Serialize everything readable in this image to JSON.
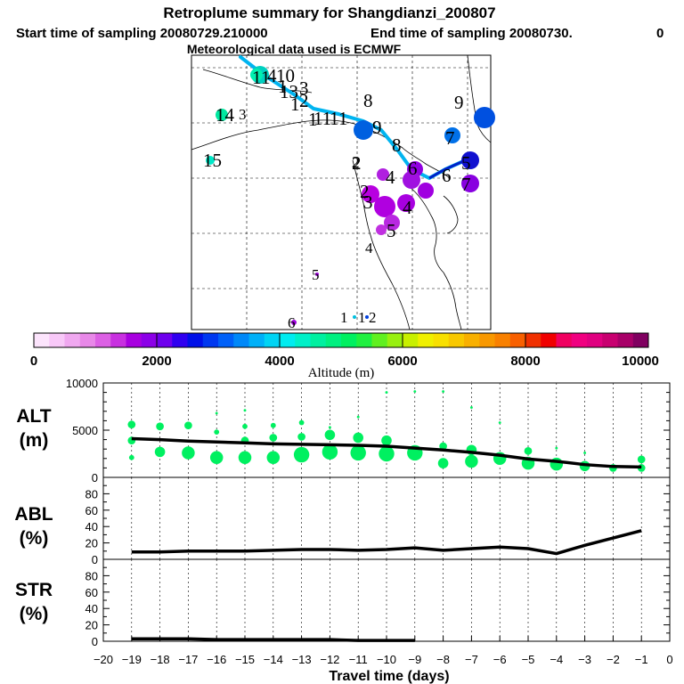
{
  "header": {
    "title": "Retroplume summary for Shangdianzi_200807",
    "start_label": "Start time of sampling 20080729.210000",
    "end_label": "End time of sampling 20080730.",
    "end_suffix": "0",
    "met_label": "Meteorological data used is ECMWF"
  },
  "colorbar": {
    "label": "Altitude (m)",
    "ticks": [
      "0",
      "2000",
      "4000",
      "6000",
      "8000",
      "10000"
    ],
    "range": [
      0,
      10000
    ],
    "colors": [
      "#fce4fc",
      "#f8c8f8",
      "#f0a8f0",
      "#e888e8",
      "#dc60e4",
      "#c830e0",
      "#a800e0",
      "#8c00e8",
      "#6e00ee",
      "#3000f0",
      "#0010e8",
      "#0038f0",
      "#0060f8",
      "#0088f8",
      "#00b0f8",
      "#00d4f4",
      "#00ecf0",
      "#00f0c8",
      "#00f0a0",
      "#00f080",
      "#00f060",
      "#20f040",
      "#60f020",
      "#98f010",
      "#c8f000",
      "#f0f000",
      "#f8e000",
      "#f8c800",
      "#f8b000",
      "#f89800",
      "#f88000",
      "#f86000",
      "#f03000",
      "#f00000",
      "#f00060",
      "#f00080",
      "#e00080",
      "#c80070",
      "#a80068",
      "#800060"
    ]
  },
  "map": {
    "path_color": "#00b4f0",
    "path_color_end": "#0020c8",
    "labels": [
      {
        "text": "1",
        "color": "#000000"
      },
      {
        "text": "1",
        "color": "#000000"
      },
      {
        "text": "1",
        "color": "#000000"
      },
      {
        "text": "1",
        "color": "#000000"
      },
      {
        "text": "1",
        "color": "#000000"
      },
      {
        "text": "1",
        "color": "#000000"
      },
      {
        "text": "1",
        "color": "#000000"
      },
      {
        "text": "2",
        "color": "#000000"
      },
      {
        "text": "2",
        "color": "#000000"
      },
      {
        "text": "2",
        "color": "#000000"
      },
      {
        "text": "3",
        "color": "#000000"
      },
      {
        "text": "3",
        "color": "#000000"
      },
      {
        "text": "4",
        "color": "#000000"
      },
      {
        "text": "4",
        "color": "#000000"
      },
      {
        "text": "4",
        "color": "#000000"
      },
      {
        "text": "5",
        "color": "#000000"
      },
      {
        "text": "5",
        "color": "#000000"
      },
      {
        "text": "6",
        "color": "#000000"
      },
      {
        "text": "6",
        "color": "#000000"
      },
      {
        "text": "7",
        "color": "#000000"
      },
      {
        "text": "7",
        "color": "#000000"
      },
      {
        "text": "8",
        "color": "#000000"
      },
      {
        "text": "8",
        "color": "#000000"
      },
      {
        "text": "9",
        "color": "#000000"
      },
      {
        "text": "9",
        "color": "#000000"
      },
      {
        "text": "10",
        "color": "#000000"
      },
      {
        "text": "11",
        "color": "#000000"
      },
      {
        "text": "13",
        "color": "#000000"
      },
      {
        "text": "14",
        "color": "#000000"
      },
      {
        "text": "15",
        "color": "#000000"
      },
      {
        "text": "2",
        "color": "#000000"
      },
      {
        "text": "4",
        "color": "#000000"
      },
      {
        "text": "5",
        "color": "#000000"
      },
      {
        "text": "6",
        "color": "#000000"
      },
      {
        "text": "1",
        "color": "#000000"
      },
      {
        "text": "1",
        "color": "#000000"
      },
      {
        "text": "2",
        "color": "#000000"
      }
    ]
  },
  "chart_data": [
    {
      "type": "scatter",
      "panel": "ALT",
      "ylabel_line1": "ALT",
      "ylabel_line2": "(m)",
      "ylim": [
        0,
        10000
      ],
      "yticks": [
        "0",
        "5000",
        "10000"
      ],
      "xlim": [
        -20,
        0
      ],
      "mean_line": {
        "x": [
          -19,
          -18,
          -17,
          -16,
          -15,
          -14,
          -13,
          -12,
          -11,
          -10,
          -9,
          -8,
          -7,
          -6,
          -5,
          -4,
          -3,
          -2,
          -1
        ],
        "y": [
          4100,
          4000,
          3850,
          3750,
          3650,
          3550,
          3500,
          3450,
          3400,
          3300,
          3100,
          2900,
          2650,
          2350,
          1950,
          1700,
          1350,
          1150,
          1100
        ]
      },
      "scatter_color": "#00f060",
      "points": [
        {
          "x": -19,
          "y": 5600,
          "r": 3
        },
        {
          "x": -19,
          "y": 3900,
          "r": 3
        },
        {
          "x": -19,
          "y": 2100,
          "r": 2
        },
        {
          "x": -18,
          "y": 5400,
          "r": 3
        },
        {
          "x": -18,
          "y": 2700,
          "r": 4
        },
        {
          "x": -17,
          "y": 5500,
          "r": 3
        },
        {
          "x": -17,
          "y": 2600,
          "r": 5
        },
        {
          "x": -16,
          "y": 6800,
          "r": 1
        },
        {
          "x": -16,
          "y": 4800,
          "r": 2
        },
        {
          "x": -16,
          "y": 2100,
          "r": 5
        },
        {
          "x": -15,
          "y": 7100,
          "r": 1
        },
        {
          "x": -15,
          "y": 5400,
          "r": 2
        },
        {
          "x": -15,
          "y": 3900,
          "r": 3
        },
        {
          "x": -15,
          "y": 2100,
          "r": 5
        },
        {
          "x": -14,
          "y": 5500,
          "r": 2
        },
        {
          "x": -14,
          "y": 4200,
          "r": 3
        },
        {
          "x": -14,
          "y": 2100,
          "r": 5
        },
        {
          "x": -13,
          "y": 5800,
          "r": 2
        },
        {
          "x": -13,
          "y": 4300,
          "r": 3
        },
        {
          "x": -13,
          "y": 2400,
          "r": 6
        },
        {
          "x": -12,
          "y": 5300,
          "r": 1
        },
        {
          "x": -12,
          "y": 4500,
          "r": 4
        },
        {
          "x": -12,
          "y": 2700,
          "r": 6
        },
        {
          "x": -11,
          "y": 6400,
          "r": 1
        },
        {
          "x": -11,
          "y": 4200,
          "r": 4
        },
        {
          "x": -11,
          "y": 2600,
          "r": 6
        },
        {
          "x": -10,
          "y": 9000,
          "r": 1
        },
        {
          "x": -10,
          "y": 3900,
          "r": 4
        },
        {
          "x": -10,
          "y": 2500,
          "r": 6
        },
        {
          "x": -9,
          "y": 9100,
          "r": 1
        },
        {
          "x": -9,
          "y": 2600,
          "r": 6
        },
        {
          "x": -8,
          "y": 9100,
          "r": 1
        },
        {
          "x": -8,
          "y": 3300,
          "r": 3
        },
        {
          "x": -8,
          "y": 1500,
          "r": 4
        },
        {
          "x": -7,
          "y": 7400,
          "r": 1
        },
        {
          "x": -7,
          "y": 2900,
          "r": 4
        },
        {
          "x": -7,
          "y": 1700,
          "r": 5
        },
        {
          "x": -6,
          "y": 5800,
          "r": 1
        },
        {
          "x": -6,
          "y": 2000,
          "r": 5
        },
        {
          "x": -5,
          "y": 2800,
          "r": 3
        },
        {
          "x": -5,
          "y": 1500,
          "r": 5
        },
        {
          "x": -4,
          "y": 3100,
          "r": 1
        },
        {
          "x": -4,
          "y": 1400,
          "r": 5
        },
        {
          "x": -3,
          "y": 2600,
          "r": 1
        },
        {
          "x": -3,
          "y": 1200,
          "r": 4
        },
        {
          "x": -2,
          "y": 1000,
          "r": 3
        },
        {
          "x": -1,
          "y": 1900,
          "r": 3
        },
        {
          "x": -1,
          "y": 1000,
          "r": 3
        }
      ]
    },
    {
      "type": "line",
      "panel": "ABL",
      "ylabel_line1": "ABL",
      "ylabel_line2": "(%)",
      "ylim": [
        0,
        100
      ],
      "yticks": [
        "0",
        "20",
        "40",
        "60",
        "80"
      ],
      "xlim": [
        -20,
        0
      ],
      "x": [
        -19,
        -18,
        -17,
        -16,
        -15,
        -14,
        -13,
        -12,
        -11,
        -10,
        -9,
        -8,
        -7,
        -6,
        -5,
        -4,
        -3,
        -2,
        -1
      ],
      "y": [
        9,
        9,
        10,
        10,
        10,
        11,
        12,
        12,
        11,
        12,
        14,
        11,
        13,
        15,
        13,
        7,
        17,
        26,
        35
      ]
    },
    {
      "type": "line",
      "panel": "STR",
      "ylabel_line1": "STR",
      "ylabel_line2": "(%)",
      "ylim": [
        0,
        100
      ],
      "yticks": [
        "0",
        "20",
        "40",
        "60",
        "80"
      ],
      "xlim": [
        -20,
        0
      ],
      "x": [
        -19,
        -18,
        -17,
        -16,
        -15,
        -14,
        -13,
        -12,
        -11,
        -10,
        -9
      ],
      "y": [
        3,
        3,
        3,
        2,
        2,
        2,
        2,
        2,
        1,
        1,
        1
      ]
    }
  ],
  "xaxis": {
    "label": "Travel time (days)",
    "ticks": [
      "−20",
      "−19",
      "−18",
      "−17",
      "−16",
      "−15",
      "−14",
      "−13",
      "−12",
      "−11",
      "−10",
      "−9",
      "−8",
      "−7",
      "−6",
      "−5",
      "−4",
      "−3",
      "−2",
      "−1",
      "0"
    ],
    "values": [
      -20,
      -19,
      -18,
      -17,
      -16,
      -15,
      -14,
      -13,
      -12,
      -11,
      -10,
      -9,
      -8,
      -7,
      -6,
      -5,
      -4,
      -3,
      -2,
      -1,
      0
    ]
  }
}
